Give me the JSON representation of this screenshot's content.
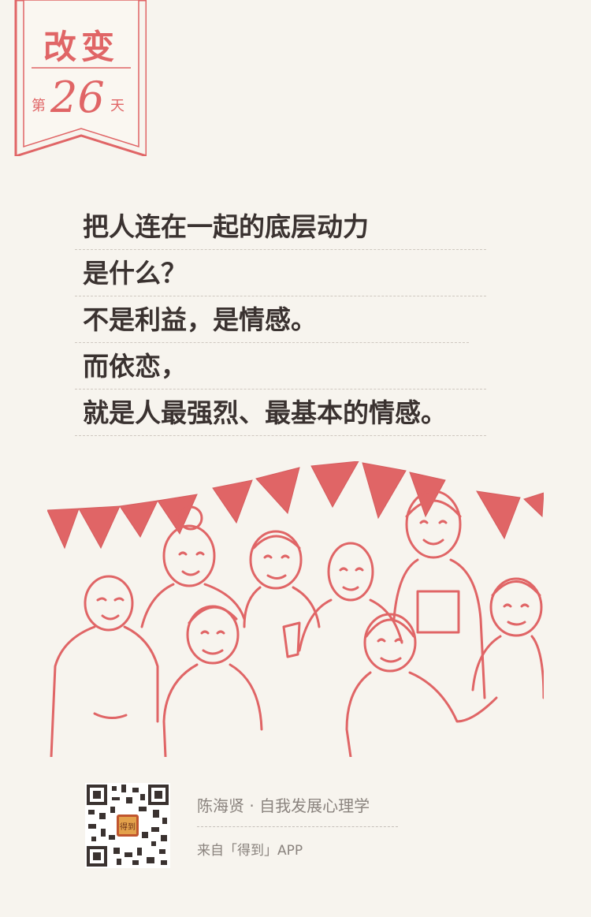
{
  "badge": {
    "title": "改变",
    "prefix": "第",
    "number": "26",
    "suffix": "天"
  },
  "quote": {
    "lines": [
      "把人连在一起的底层动力",
      "是什么？",
      "不是利益，是情感。",
      "而依恋，",
      "就是人最强烈、最基本的情感。"
    ]
  },
  "footer": {
    "author": "陈海贤 · 自我发展心理学",
    "source": "来自「得到」APP",
    "qr_logo_text": "得到"
  },
  "colors": {
    "accent": "#e06566",
    "text": "#3a3230",
    "muted": "#8a837e",
    "background": "#f7f4ee"
  }
}
